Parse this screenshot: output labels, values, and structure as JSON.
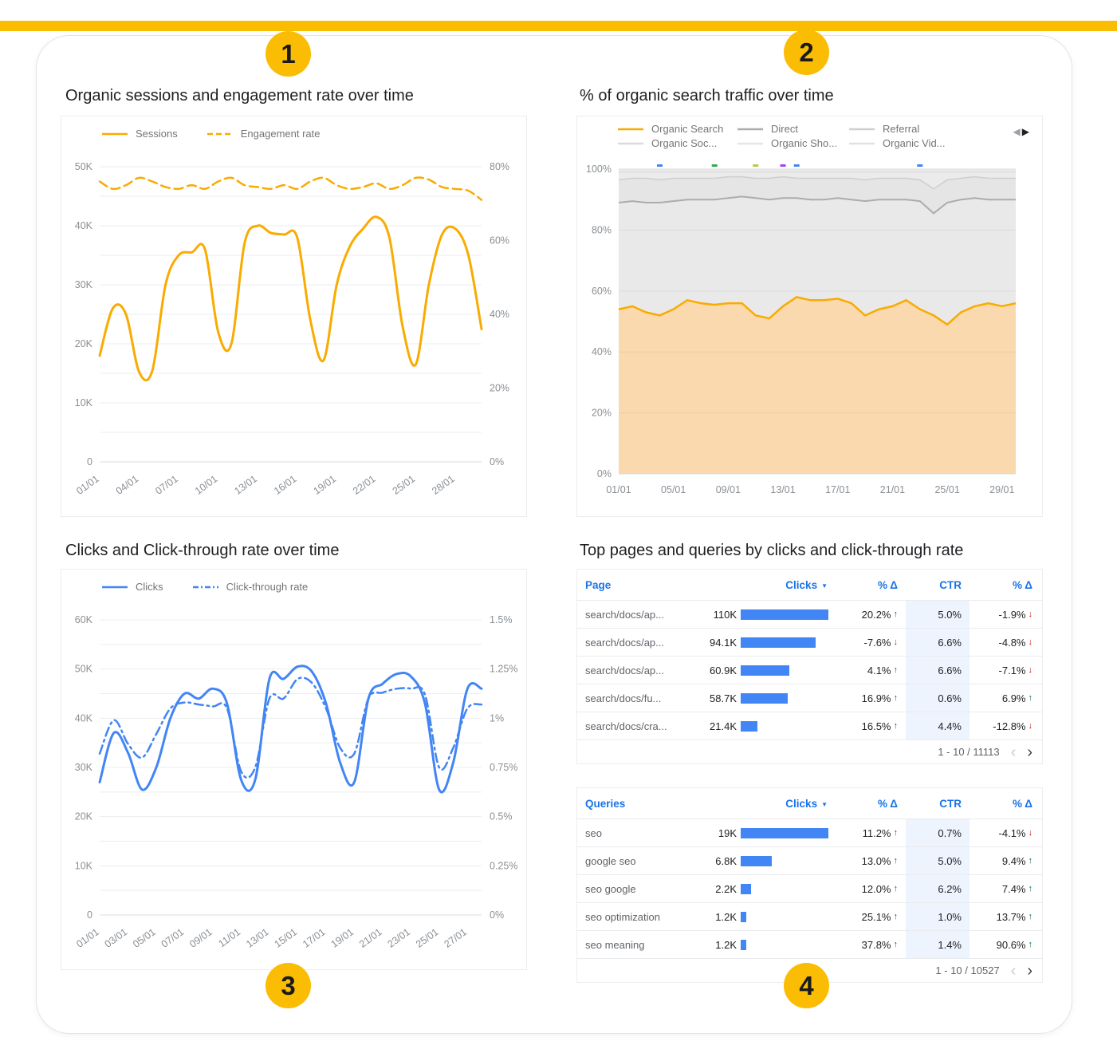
{
  "page": {
    "background": "#FFFFFF",
    "accent_bar_color": "#FBBC04"
  },
  "badges": [
    "1",
    "2",
    "3",
    "4"
  ],
  "colors": {
    "yellow": "#FBBC04",
    "orange": "#F9AB00",
    "blue": "#4285F4",
    "header_blue": "#1A73E8",
    "green": "#137333",
    "red": "#C5221F",
    "axis_text": "#8A8F94"
  },
  "icons": {
    "sort_desc": "▼",
    "up_arrow": "↑",
    "down_arrow": "↓",
    "prev_chevron": "‹",
    "next_chevron": "›",
    "legend_prev": "◀",
    "legend_next": "▶"
  },
  "panels": {
    "sessions": {
      "title": "Organic sessions and engagement rate over time"
    },
    "traffic": {
      "title": "% of organic search traffic over time"
    },
    "clicks": {
      "title": "Clicks and Click-through rate over time"
    },
    "tables": {
      "title": "Top pages and queries by clicks and click-through rate"
    }
  },
  "chart_data": [
    {
      "id": "sessions_engagement",
      "type": "line",
      "title": "Organic sessions and engagement rate over time",
      "n_points": 30,
      "x_tick_labels": [
        "01/01",
        "04/01",
        "07/01",
        "10/01",
        "13/01",
        "16/01",
        "19/01",
        "22/01",
        "25/01",
        "28/01"
      ],
      "x_tick_step": 3,
      "grid_divisions": 10,
      "left_axis": {
        "min": 0,
        "max": 50000,
        "ticks": [
          "0",
          "10K",
          "20K",
          "30K",
          "40K",
          "50K"
        ]
      },
      "right_axis": {
        "min": 0,
        "max": 80,
        "ticks": [
          "0%",
          "20%",
          "40%",
          "60%",
          "80%"
        ]
      },
      "series": [
        {
          "name": "Sessions",
          "axis": "left",
          "style": "solid",
          "color": "#F9AB00",
          "values": [
            18000,
            26000,
            25000,
            15200,
            15500,
            30000,
            35000,
            35500,
            36000,
            22000,
            20000,
            37000,
            40000,
            38800,
            38500,
            38000,
            24000,
            17200,
            30000,
            36500,
            39500,
            41500,
            38000,
            23000,
            16500,
            30000,
            38500,
            39500,
            35000,
            22500
          ]
        },
        {
          "name": "Engagement rate",
          "axis": "right",
          "style": "dashed",
          "color": "#F9AB00",
          "values": [
            76,
            74,
            75,
            77,
            76,
            74.5,
            74,
            75,
            74,
            76,
            77,
            75,
            74.5,
            74,
            75,
            74,
            76,
            77,
            75,
            74,
            74.5,
            75.5,
            74,
            75,
            77,
            76.5,
            74.5,
            74,
            73.5,
            71
          ]
        }
      ]
    },
    {
      "id": "organic_traffic_share",
      "type": "area",
      "stacked_percent": true,
      "title": "% of organic search traffic over time",
      "n_points": 30,
      "x_tick_labels": [
        "01/01",
        "05/01",
        "09/01",
        "13/01",
        "17/01",
        "21/01",
        "25/01",
        "29/01"
      ],
      "x_tick_step": 4,
      "y_axis": {
        "min": 0,
        "max": 100,
        "ticks": [
          "0%",
          "20%",
          "40%",
          "60%",
          "80%",
          "100%"
        ]
      },
      "series": [
        {
          "name": "Organic Search",
          "color": "#F9AB00",
          "fill": "#FAD9AE",
          "values": [
            54,
            55,
            53,
            52,
            54,
            57,
            56,
            55.5,
            56,
            56,
            52,
            51,
            55,
            58,
            57,
            57,
            57.5,
            56,
            52,
            54,
            55,
            57,
            54,
            52,
            49,
            53,
            55,
            56,
            55,
            56
          ]
        },
        {
          "name": "Direct",
          "color": "#ACACAC",
          "fill": "#E9E9E9",
          "values": [
            35,
            34.5,
            36,
            37,
            35.5,
            33,
            34,
            34.5,
            34.5,
            35,
            38.5,
            39,
            35.5,
            32.5,
            33,
            33,
            33,
            34,
            37.5,
            36,
            35,
            33,
            35.5,
            33.5,
            40,
            37,
            35.5,
            34,
            35,
            34
          ]
        },
        {
          "name": "Referral",
          "color": "#CFCFCF",
          "fill": "#E5E5E5",
          "values": [
            7.5,
            7.5,
            8,
            7.5,
            7.5,
            7,
            7,
            7,
            7,
            6.5,
            6.5,
            7,
            7,
            6.5,
            7,
            7,
            6.5,
            7,
            7,
            7,
            7,
            7,
            7,
            8,
            7.5,
            7,
            7,
            7,
            7,
            7
          ]
        },
        {
          "name": "Organic Soc...",
          "color": "#DBDBDB",
          "fill": "#EBEBEB",
          "values": [
            2.5,
            2,
            2,
            2.5,
            2,
            2,
            2,
            2,
            1.5,
            1.5,
            2,
            2,
            1.5,
            2,
            2,
            2,
            2,
            2,
            2.5,
            2,
            2,
            2,
            2.5,
            5.5,
            2.5,
            2,
            1.5,
            2,
            2,
            2
          ]
        },
        {
          "name": "Organic Sho...",
          "color": "#E6E6E6",
          "fill": "#F0F0F0",
          "values": [
            0.4,
            0.4,
            0.4,
            0.4,
            0.4,
            0.4,
            0.4,
            0.4,
            0.4,
            0.4,
            0.4,
            0.4,
            0.4,
            0.4,
            0.4,
            0.4,
            0.4,
            0.4,
            0.4,
            0.4,
            0.4,
            0.4,
            0.4,
            0.4,
            0.4,
            0.4,
            0.4,
            0.4,
            0.4,
            0.4
          ]
        },
        {
          "name": "Organic Vid...",
          "color": "#E1E1E1",
          "fill": "#EDEDED",
          "values": [
            0.6,
            0.6,
            0.6,
            0.6,
            0.6,
            0.6,
            0.6,
            0.6,
            0.6,
            0.6,
            0.6,
            0.6,
            0.6,
            0.6,
            0.6,
            0.6,
            0.6,
            0.6,
            0.6,
            0.6,
            0.6,
            0.6,
            0.6,
            0.6,
            0.6,
            0.6,
            0.6,
            0.6,
            0.6,
            0.6
          ]
        }
      ],
      "markers": [
        {
          "i": 3,
          "color": "#4285F4"
        },
        {
          "i": 7,
          "color": "#34A853"
        },
        {
          "i": 10,
          "color": "#B8C94A"
        },
        {
          "i": 12,
          "color": "#A142F4"
        },
        {
          "i": 13,
          "color": "#4285F4"
        },
        {
          "i": 22,
          "color": "#4285F4"
        }
      ]
    },
    {
      "id": "clicks_ctr",
      "type": "line",
      "title": "Clicks and Click-through rate over time",
      "n_points": 28,
      "x_tick_labels": [
        "01/01",
        "03/01",
        "05/01",
        "07/01",
        "09/01",
        "11/01",
        "13/01",
        "15/01",
        "17/01",
        "19/01",
        "21/01",
        "23/01",
        "25/01",
        "27/01"
      ],
      "x_tick_step": 2,
      "grid_divisions": 12,
      "left_axis": {
        "min": 0,
        "max": 60000,
        "ticks": [
          "0",
          "10K",
          "20K",
          "30K",
          "40K",
          "50K",
          "60K"
        ]
      },
      "right_axis": {
        "min": 0,
        "max": 1.5,
        "ticks": [
          "0%",
          "0.25%",
          "0.5%",
          "0.75%",
          "1%",
          "1.25%",
          "1.5%"
        ]
      },
      "series": [
        {
          "name": "Clicks",
          "axis": "left",
          "style": "solid",
          "color": "#4285F4",
          "values": [
            27000,
            37000,
            33000,
            25500,
            30000,
            40000,
            45000,
            44000,
            46000,
            43000,
            27500,
            27500,
            48000,
            48000,
            50500,
            49500,
            43000,
            31000,
            27000,
            44000,
            47000,
            49000,
            48500,
            43000,
            25500,
            31000,
            46000,
            46000
          ]
        },
        {
          "name": "Click-through rate",
          "axis": "right",
          "style": "dashdot",
          "color": "#4285F4",
          "values": [
            0.82,
            0.99,
            0.87,
            0.8,
            0.92,
            1.05,
            1.08,
            1.07,
            1.06,
            1.05,
            0.73,
            0.75,
            1.1,
            1.1,
            1.2,
            1.18,
            1.05,
            0.85,
            0.82,
            1.1,
            1.13,
            1.15,
            1.15,
            1.12,
            0.75,
            0.85,
            1.05,
            1.07
          ]
        }
      ]
    },
    {
      "id": "pages",
      "type": "table",
      "columns": [
        "Page",
        "Clicks",
        "% Δ",
        "CTR",
        "% Δ"
      ],
      "sorted_by": "Clicks",
      "rows": [
        {
          "name": "search/docs/ap...",
          "clicks_label": "110K",
          "clicks_value": 110000,
          "delta": "20.2%",
          "delta_dir": "up",
          "ctr": "5.0%",
          "ctr_delta": "-1.9%",
          "ctr_delta_dir": "down"
        },
        {
          "name": "search/docs/ap...",
          "clicks_label": "94.1K",
          "clicks_value": 94100,
          "delta": "-7.6%",
          "delta_dir": "down",
          "ctr": "6.6%",
          "ctr_delta": "-4.8%",
          "ctr_delta_dir": "down"
        },
        {
          "name": "search/docs/ap...",
          "clicks_label": "60.9K",
          "clicks_value": 60900,
          "delta": "4.1%",
          "delta_dir": "up",
          "ctr": "6.6%",
          "ctr_delta": "-7.1%",
          "ctr_delta_dir": "down"
        },
        {
          "name": "search/docs/fu...",
          "clicks_label": "58.7K",
          "clicks_value": 58700,
          "delta": "16.9%",
          "delta_dir": "up",
          "ctr": "0.6%",
          "ctr_delta": "6.9%",
          "ctr_delta_dir": "up"
        },
        {
          "name": "search/docs/cra...",
          "clicks_label": "21.4K",
          "clicks_value": 21400,
          "delta": "16.5%",
          "delta_dir": "up",
          "ctr": "4.4%",
          "ctr_delta": "-12.8%",
          "ctr_delta_dir": "down"
        }
      ],
      "pagination": "1 - 10 / 11113"
    },
    {
      "id": "queries",
      "type": "table",
      "columns": [
        "Queries",
        "Clicks",
        "% Δ",
        "CTR",
        "% Δ"
      ],
      "sorted_by": "Clicks",
      "rows": [
        {
          "name": "seo",
          "clicks_label": "19K",
          "clicks_value": 19000,
          "delta": "11.2%",
          "delta_dir": "up",
          "ctr": "0.7%",
          "ctr_delta": "-4.1%",
          "ctr_delta_dir": "down"
        },
        {
          "name": "google seo",
          "clicks_label": "6.8K",
          "clicks_value": 6800,
          "delta": "13.0%",
          "delta_dir": "up",
          "ctr": "5.0%",
          "ctr_delta": "9.4%",
          "ctr_delta_dir": "up"
        },
        {
          "name": "seo google",
          "clicks_label": "2.2K",
          "clicks_value": 2200,
          "delta": "12.0%",
          "delta_dir": "up",
          "ctr": "6.2%",
          "ctr_delta": "7.4%",
          "ctr_delta_dir": "up"
        },
        {
          "name": "seo optimization",
          "clicks_label": "1.2K",
          "clicks_value": 1200,
          "delta": "25.1%",
          "delta_dir": "up",
          "ctr": "1.0%",
          "ctr_delta": "13.7%",
          "ctr_delta_dir": "up"
        },
        {
          "name": "seo meaning",
          "clicks_label": "1.2K",
          "clicks_value": 1200,
          "delta": "37.8%",
          "delta_dir": "up",
          "ctr": "1.4%",
          "ctr_delta": "90.6%",
          "ctr_delta_dir": "up"
        }
      ],
      "pagination": "1 - 10 / 10527"
    }
  ]
}
